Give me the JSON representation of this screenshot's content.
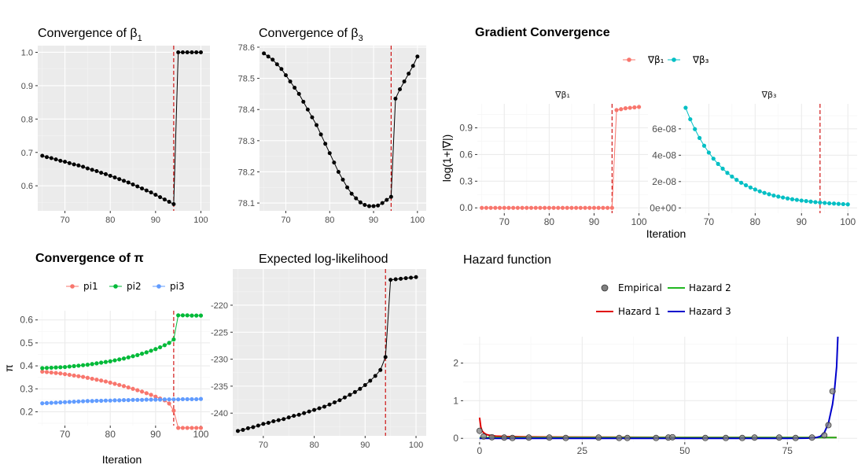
{
  "colors": {
    "black": "#000000",
    "red_vline": "#cc0000",
    "pi1": "#F8766D",
    "pi2": "#00BA38",
    "pi3": "#619CFF",
    "grad_b1": "#F8766D",
    "grad_b3": "#00BFC4",
    "hazard1": "#e00000",
    "hazard2": "#22b822",
    "hazard3": "#0000cc",
    "empirical": "#808080"
  },
  "chart_data": [
    {
      "id": "beta1",
      "type": "line",
      "title": "Convergence of β",
      "title_sub": "1",
      "xlabel": "",
      "ylabel": "",
      "xlim": [
        64,
        102
      ],
      "ylim": [
        0.525,
        1.02
      ],
      "xticks": [
        70,
        80,
        90,
        100
      ],
      "yticks": [
        0.6,
        0.7,
        0.8,
        0.9,
        1.0
      ],
      "ytick_labels": [
        "0.6",
        "0.7",
        "0.8",
        "0.9",
        "1.0"
      ],
      "vline": 94,
      "grid": true,
      "background": "grey",
      "x": [
        65,
        66,
        67,
        68,
        69,
        70,
        71,
        72,
        73,
        74,
        75,
        76,
        77,
        78,
        79,
        80,
        81,
        82,
        83,
        84,
        85,
        86,
        87,
        88,
        89,
        90,
        91,
        92,
        93,
        94,
        95,
        96,
        97,
        98,
        99,
        100
      ],
      "y": [
        0.69,
        0.686,
        0.683,
        0.679,
        0.675,
        0.672,
        0.668,
        0.664,
        0.661,
        0.657,
        0.652,
        0.648,
        0.644,
        0.639,
        0.635,
        0.63,
        0.625,
        0.62,
        0.615,
        0.61,
        0.604,
        0.598,
        0.592,
        0.586,
        0.58,
        0.573,
        0.566,
        0.559,
        0.552,
        0.545,
        1.0,
        1.0,
        1.0,
        1.0,
        1.0,
        1.0
      ]
    },
    {
      "id": "beta3",
      "type": "line",
      "title": "Convergence of β",
      "title_sub": "3",
      "xlabel": "",
      "ylabel": "",
      "xlim": [
        64,
        102
      ],
      "ylim": [
        78.075,
        78.605
      ],
      "xticks": [
        70,
        80,
        90,
        100
      ],
      "yticks": [
        78.1,
        78.2,
        78.3,
        78.4,
        78.5,
        78.6
      ],
      "ytick_labels": [
        "78.1",
        "78.2",
        "78.3",
        "78.4",
        "78.5",
        "78.6"
      ],
      "vline": 94,
      "grid": true,
      "background": "grey",
      "x": [
        65,
        66,
        67,
        68,
        69,
        70,
        71,
        72,
        73,
        74,
        75,
        76,
        77,
        78,
        79,
        80,
        81,
        82,
        83,
        84,
        85,
        86,
        87,
        88,
        89,
        90,
        91,
        92,
        93,
        94,
        95,
        96,
        97,
        98,
        99,
        100
      ],
      "y": [
        78.58,
        78.57,
        78.56,
        78.545,
        78.53,
        78.51,
        78.49,
        78.47,
        78.45,
        78.425,
        78.4,
        78.375,
        78.35,
        78.32,
        78.29,
        78.26,
        78.23,
        78.2,
        78.175,
        78.15,
        78.13,
        78.115,
        78.102,
        78.094,
        78.09,
        78.09,
        78.092,
        78.1,
        78.11,
        78.12,
        78.435,
        78.465,
        78.49,
        78.515,
        78.54,
        78.57
      ]
    },
    {
      "id": "grad",
      "type": "line",
      "title": "Gradient Convergence",
      "title_bold": true,
      "xlabel": "Iteration",
      "ylabel": "log(1+|∇|)",
      "legend": {
        "position": "top",
        "entries": [
          "∇β₁",
          "∇β₃"
        ]
      },
      "vline": 94,
      "grid": true,
      "background": "white",
      "panels": [
        {
          "strip": "∇β₁",
          "xlim": [
            64,
            102
          ],
          "ylim": [
            -0.06,
            1.17
          ],
          "xticks": [
            70,
            80,
            90,
            100
          ],
          "yticks": [
            0.0,
            0.3,
            0.6,
            0.9
          ],
          "ytick_labels": [
            "0.0",
            "0.3",
            "0.6",
            "0.9"
          ],
          "series": "∇β₁",
          "x": [
            65,
            66,
            67,
            68,
            69,
            70,
            71,
            72,
            73,
            74,
            75,
            76,
            77,
            78,
            79,
            80,
            81,
            82,
            83,
            84,
            85,
            86,
            87,
            88,
            89,
            90,
            91,
            92,
            93,
            94,
            95,
            96,
            97,
            98,
            99,
            100
          ],
          "y": [
            0,
            0,
            0,
            0,
            0,
            0,
            0,
            0,
            0,
            0,
            0,
            0,
            0,
            0,
            0,
            0,
            0,
            0,
            0,
            0,
            0,
            0,
            0,
            0,
            0,
            0,
            0,
            0,
            0,
            0,
            1.1,
            1.11,
            1.12,
            1.125,
            1.13,
            1.135
          ]
        },
        {
          "strip": "∇β₃",
          "xlim": [
            64,
            102
          ],
          "ylim": [
            -4e-09,
            7.9e-08
          ],
          "xticks": [
            70,
            80,
            90,
            100
          ],
          "yticks": [
            0,
            2e-08,
            4e-08,
            6e-08
          ],
          "ytick_labels": [
            "0e+00",
            "2e-08",
            "4e-08",
            "6e-08"
          ],
          "series": "∇β₃",
          "x": [
            65,
            66,
            67,
            68,
            69,
            70,
            71,
            72,
            73,
            74,
            75,
            76,
            77,
            78,
            79,
            80,
            81,
            82,
            83,
            84,
            85,
            86,
            87,
            88,
            89,
            90,
            91,
            92,
            93,
            94,
            95,
            96,
            97,
            98,
            99,
            100
          ],
          "y": [
            7.6e-08,
            6.73e-08,
            5.98e-08,
            5.31e-08,
            4.72e-08,
            4.2e-08,
            3.74e-08,
            3.34e-08,
            2.98e-08,
            2.66e-08,
            2.38e-08,
            2.13e-08,
            1.91e-08,
            1.72e-08,
            1.55e-08,
            1.4e-08,
            1.26e-08,
            1.14e-08,
            1.04e-08,
            9.4e-09,
            8.6e-09,
            7.9e-09,
            7.2e-09,
            6.6e-09,
            6.1e-09,
            5.6e-09,
            5.2e-09,
            4.8e-09,
            4.4e-09,
            4.1e-09,
            3.8e-09,
            3.5e-09,
            3.3e-09,
            3.1e-09,
            2.9e-09,
            2.7e-09
          ]
        }
      ]
    },
    {
      "id": "pi",
      "type": "line",
      "title": "Convergence of π",
      "title_bold": true,
      "xlabel": "Iteration",
      "ylabel": "π",
      "xlim": [
        64,
        102
      ],
      "ylim": [
        0.14,
        0.64
      ],
      "xticks": [
        70,
        80,
        90,
        100
      ],
      "yticks": [
        0.2,
        0.3,
        0.4,
        0.5,
        0.6
      ],
      "ytick_labels": [
        "0.2",
        "0.3",
        "0.4",
        "0.5",
        "0.6"
      ],
      "vline": 94,
      "grid": true,
      "background": "white",
      "legend": {
        "position": "top",
        "entries": [
          "pi1",
          "pi2",
          "pi3"
        ]
      },
      "x": [
        65,
        66,
        67,
        68,
        69,
        70,
        71,
        72,
        73,
        74,
        75,
        76,
        77,
        78,
        79,
        80,
        81,
        82,
        83,
        84,
        85,
        86,
        87,
        88,
        89,
        90,
        91,
        92,
        93,
        94,
        95,
        96,
        97,
        98,
        99,
        100
      ],
      "series": [
        {
          "name": "pi1",
          "values": [
            0.375,
            0.373,
            0.371,
            0.369,
            0.367,
            0.364,
            0.361,
            0.358,
            0.355,
            0.352,
            0.348,
            0.344,
            0.34,
            0.336,
            0.332,
            0.327,
            0.322,
            0.317,
            0.312,
            0.306,
            0.3,
            0.294,
            0.288,
            0.281,
            0.274,
            0.266,
            0.258,
            0.25,
            0.236,
            0.205,
            0.13,
            0.13,
            0.13,
            0.13,
            0.13,
            0.13
          ]
        },
        {
          "name": "pi2",
          "values": [
            0.39,
            0.391,
            0.392,
            0.393,
            0.394,
            0.395,
            0.397,
            0.399,
            0.401,
            0.403,
            0.405,
            0.408,
            0.411,
            0.414,
            0.417,
            0.42,
            0.424,
            0.428,
            0.432,
            0.437,
            0.442,
            0.447,
            0.453,
            0.459,
            0.466,
            0.473,
            0.481,
            0.49,
            0.5,
            0.515,
            0.62,
            0.62,
            0.62,
            0.619,
            0.619,
            0.619
          ]
        },
        {
          "name": "pi3",
          "values": [
            0.237,
            0.238,
            0.239,
            0.24,
            0.241,
            0.242,
            0.243,
            0.244,
            0.245,
            0.246,
            0.247,
            0.247,
            0.248,
            0.248,
            0.249,
            0.249,
            0.25,
            0.25,
            0.251,
            0.251,
            0.252,
            0.252,
            0.252,
            0.253,
            0.253,
            0.253,
            0.253,
            0.254,
            0.254,
            0.254,
            0.254,
            0.255,
            0.255,
            0.255,
            0.255,
            0.256
          ]
        }
      ]
    },
    {
      "id": "loglik",
      "type": "line",
      "title": "Expected log-likelihood",
      "xlabel": "",
      "ylabel": "",
      "xlim": [
        64,
        102
      ],
      "ylim": [
        -244.2,
        -213.3
      ],
      "xticks": [
        70,
        80,
        90,
        100
      ],
      "yticks": [
        -240,
        -235,
        -230,
        -225,
        -220
      ],
      "ytick_labels": [
        "-240",
        "-235",
        "-230",
        "-225",
        "-220"
      ],
      "vline": 94,
      "grid": true,
      "background": "grey",
      "x": [
        65,
        66,
        67,
        68,
        69,
        70,
        71,
        72,
        73,
        74,
        75,
        76,
        77,
        78,
        79,
        80,
        81,
        82,
        83,
        84,
        85,
        86,
        87,
        88,
        89,
        90,
        91,
        92,
        93,
        94,
        95,
        96,
        97,
        98,
        99,
        100
      ],
      "y": [
        -243.3,
        -243.1,
        -242.8,
        -242.6,
        -242.3,
        -242.0,
        -241.8,
        -241.5,
        -241.3,
        -241.1,
        -240.8,
        -240.5,
        -240.3,
        -240.0,
        -239.7,
        -239.4,
        -239.1,
        -238.8,
        -238.4,
        -238.0,
        -237.6,
        -237.1,
        -236.6,
        -236.1,
        -235.5,
        -234.8,
        -234.0,
        -233.1,
        -232.0,
        -229.6,
        -215.3,
        -215.2,
        -215.1,
        -215.0,
        -214.9,
        -214.8
      ]
    },
    {
      "id": "hazard",
      "type": "line",
      "title": "Hazard function",
      "xlabel": "",
      "ylabel": "",
      "xlim": [
        -4,
        92
      ],
      "ylim": [
        -0.1,
        2.7
      ],
      "xticks": [
        0,
        25,
        50,
        75
      ],
      "yticks": [
        0,
        1,
        2
      ],
      "ytick_labels": [
        "0",
        "1",
        "2"
      ],
      "grid": true,
      "background": "white",
      "legend": {
        "position": "top",
        "entries": [
          "Empirical",
          "Hazard 2",
          "Hazard 1",
          "Hazard 3"
        ]
      },
      "series": [
        {
          "name": "Hazard 1",
          "x": [
            0,
            0.3,
            0.6,
            1,
            1.5,
            2,
            3,
            4,
            6,
            8,
            10,
            15,
            20,
            30,
            40,
            50,
            60,
            70,
            80,
            85,
            87
          ],
          "values": [
            0.55,
            0.3,
            0.2,
            0.15,
            0.11,
            0.09,
            0.07,
            0.06,
            0.05,
            0.045,
            0.04,
            0.036,
            0.033,
            0.03,
            0.028,
            0.026,
            0.025,
            0.024,
            0.023,
            0.022,
            0.022
          ]
        },
        {
          "name": "Hazard 2",
          "x": [
            0,
            10,
            20,
            30,
            40,
            50,
            60,
            70,
            80,
            87
          ],
          "values": [
            0.02,
            0.02,
            0.02,
            0.02,
            0.02,
            0.02,
            0.02,
            0.02,
            0.02,
            0.02
          ]
        },
        {
          "name": "Hazard 3",
          "x": [
            0,
            20,
            40,
            60,
            75,
            80,
            82,
            83,
            84,
            85,
            86,
            86.5,
            87,
            87.3
          ],
          "values": [
            0,
            0,
            0,
            0,
            0,
            0.005,
            0.02,
            0.05,
            0.15,
            0.4,
            0.9,
            1.3,
            1.9,
            2.7
          ]
        }
      ],
      "empirical": {
        "x": [
          0,
          1,
          3,
          6,
          8,
          12,
          17,
          21,
          29,
          34,
          36,
          43,
          46,
          47,
          55,
          60,
          64,
          67,
          73,
          77,
          81,
          84,
          85,
          86
        ],
        "values": [
          0.2,
          0.05,
          0.03,
          0.02,
          0.01,
          0.02,
          0.02,
          0.01,
          0.02,
          0.01,
          0.01,
          0.01,
          0.02,
          0.03,
          0.01,
          0.01,
          0.01,
          0.02,
          0.02,
          0.01,
          0.02,
          0.08,
          0.35,
          1.25
        ]
      }
    }
  ]
}
